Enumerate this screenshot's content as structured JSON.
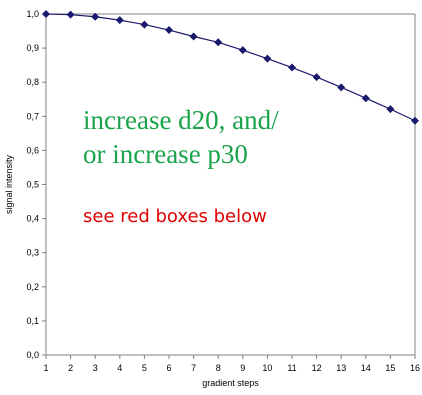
{
  "chart_data": {
    "type": "line",
    "xlabel": "gradient steps",
    "ylabel": "signal intensity",
    "xlim": [
      1,
      16
    ],
    "ylim": [
      0,
      1
    ],
    "x_ticks": [
      "1",
      "2",
      "3",
      "4",
      "5",
      "6",
      "7",
      "8",
      "9",
      "10",
      "11",
      "12",
      "13",
      "14",
      "15",
      "16"
    ],
    "y_ticks": [
      "0,0",
      "0,1",
      "0,2",
      "0,3",
      "0,4",
      "0,5",
      "0,6",
      "0,7",
      "0,8",
      "0,9",
      "1,0"
    ],
    "series": [
      {
        "x": [
          1,
          2,
          3,
          4,
          5,
          6,
          7,
          8,
          9,
          10,
          11,
          12,
          13,
          14,
          15,
          16
        ],
        "values": [
          1.0,
          0.998,
          0.992,
          0.982,
          0.969,
          0.953,
          0.934,
          0.917,
          0.894,
          0.869,
          0.843,
          0.815,
          0.785,
          0.753,
          0.721,
          0.687
        ],
        "color": "#1a1a6e",
        "marker": "diamond"
      }
    ],
    "grid": false,
    "legend": "none",
    "annotations": [
      {
        "lines": [
          "increase d20, and/",
          "or increase p30"
        ],
        "color": "#1aa34a"
      },
      {
        "lines": [
          "see red boxes below"
        ],
        "color": "#e00000"
      }
    ]
  }
}
